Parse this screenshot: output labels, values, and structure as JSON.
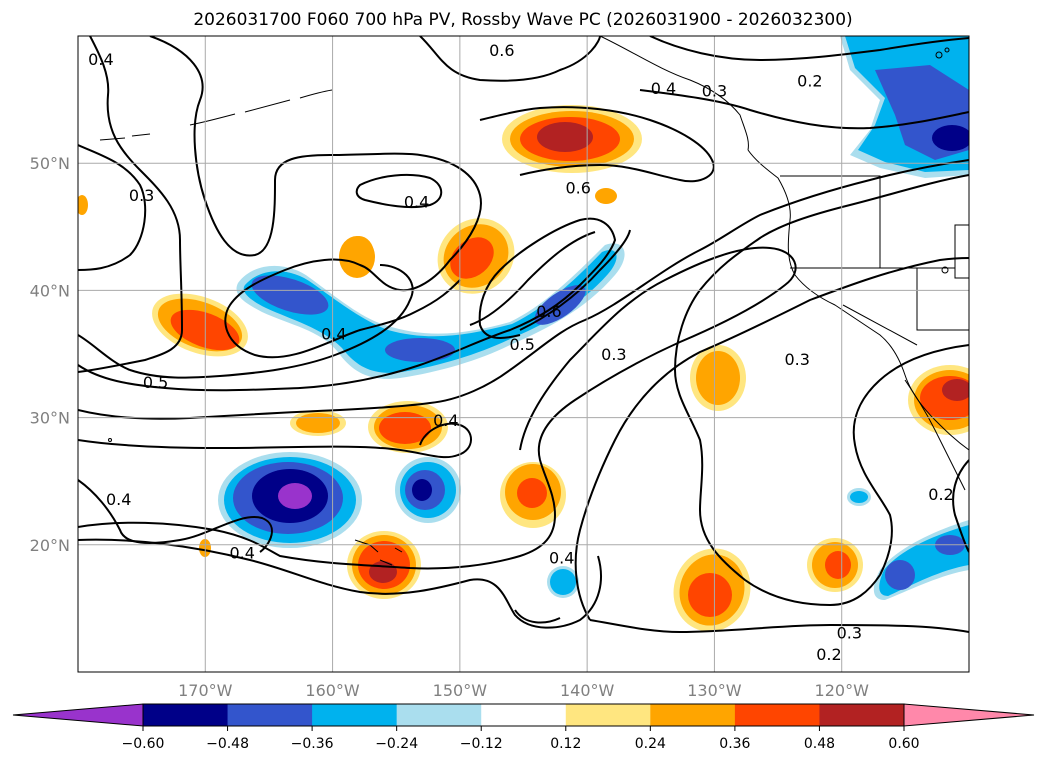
{
  "title": "2026031700 F060 700 hPa PV, Rossby Wave PC (2026031900 - 2026032300)",
  "map": {
    "lon_range": [
      -180,
      -110
    ],
    "lat_range": [
      10,
      60
    ],
    "lat_ticks": [
      {
        "value": 20,
        "label": "20°N"
      },
      {
        "value": 30,
        "label": "30°N"
      },
      {
        "value": 40,
        "label": "40°N"
      },
      {
        "value": 50,
        "label": "50°N"
      }
    ],
    "lon_ticks": [
      {
        "value": -170,
        "label": "170°W"
      },
      {
        "value": -160,
        "label": "160°W"
      },
      {
        "value": -150,
        "label": "150°W"
      },
      {
        "value": -140,
        "label": "140°W"
      },
      {
        "value": -130,
        "label": "130°W"
      },
      {
        "value": -120,
        "label": "120°W"
      }
    ],
    "contour_labels": [
      {
        "text": "0.4",
        "lon": -178.2,
        "lat": 58.2
      },
      {
        "text": "0.6",
        "lon": -146.7,
        "lat": 58.9
      },
      {
        "text": "0.4",
        "lon": -134.0,
        "lat": 55.9
      },
      {
        "text": "0.3",
        "lon": -130.0,
        "lat": 55.7
      },
      {
        "text": "0.2",
        "lon": -122.5,
        "lat": 56.5
      },
      {
        "text": "0.3",
        "lon": -175.0,
        "lat": 47.5
      },
      {
        "text": "0.4",
        "lon": -153.4,
        "lat": 47.0
      },
      {
        "text": "0.6",
        "lon": -140.7,
        "lat": 48.1
      },
      {
        "text": "0.6",
        "lon": -143.0,
        "lat": 38.4
      },
      {
        "text": "0.5",
        "lon": -145.1,
        "lat": 35.8
      },
      {
        "text": "0.4",
        "lon": -159.9,
        "lat": 36.6
      },
      {
        "text": "0.5",
        "lon": -173.9,
        "lat": 32.8
      },
      {
        "text": "0.3",
        "lon": -137.9,
        "lat": 35.0
      },
      {
        "text": "0.3",
        "lon": -123.5,
        "lat": 34.6
      },
      {
        "text": "0.4",
        "lon": -151.1,
        "lat": 29.8
      },
      {
        "text": "0.4",
        "lon": -176.8,
        "lat": 23.6
      },
      {
        "text": "0.4",
        "lon": -167.1,
        "lat": 19.4
      },
      {
        "text": "0.4",
        "lon": -142.0,
        "lat": 19.0
      },
      {
        "text": "0.3",
        "lon": -119.4,
        "lat": 13.1
      },
      {
        "text": "0.2",
        "lon": -121.0,
        "lat": 11.4
      },
      {
        "text": "0.2",
        "lon": -112.2,
        "lat": 24.0
      }
    ]
  },
  "colorbar": {
    "levels": [
      -0.6,
      -0.48,
      -0.36,
      -0.24,
      -0.12,
      0.12,
      0.24,
      0.36,
      0.48,
      0.6
    ],
    "tick_labels": [
      "−0.60",
      "−0.48",
      "−0.36",
      "−0.24",
      "−0.12",
      "0.12",
      "0.24",
      "0.36",
      "0.48",
      "0.60"
    ],
    "colors": [
      "#9933cc",
      "#000088",
      "#3355cc",
      "#00b2ee",
      "#aadeee",
      "#ffffff",
      "#ffe680",
      "#ffa500",
      "#ff4500",
      "#b22222",
      "#ff88aa"
    ],
    "extend": "both"
  },
  "style_colors": {
    "gridline": "#aaaaaa",
    "contour": "#000000",
    "tick_label": "#808080"
  }
}
